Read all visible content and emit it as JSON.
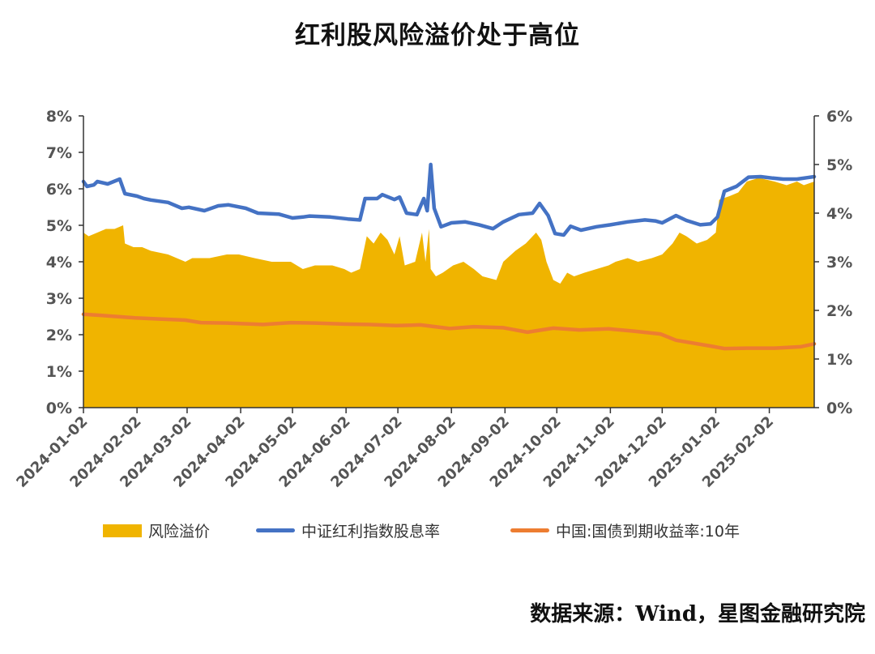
{
  "title": "红利股风险溢价处于高位",
  "source": "数据来源：Wind，星图金融研究院",
  "colors": {
    "premium": "#F0B400",
    "dividend": "#4472C4",
    "bond": "#ED7D31",
    "axis": "#333333"
  },
  "chart_data": {
    "type": "line",
    "title": "红利股风险溢价处于高位",
    "xlabel": "",
    "ylabel_left": "",
    "ylabel_right": "",
    "x_range": [
      "2024-01-02",
      "2025-02-28"
    ],
    "x_ticks": [
      "2024-01-02",
      "2024-02-02",
      "2024-03-02",
      "2024-04-02",
      "2024-05-02",
      "2024-06-02",
      "2024-07-02",
      "2024-08-02",
      "2024-09-02",
      "2024-10-02",
      "2024-11-02",
      "2024-12-02",
      "2025-01-02",
      "2025-02-02"
    ],
    "y_left": {
      "range": [
        0,
        8
      ],
      "ticks": [
        "0%",
        "1%",
        "2%",
        "3%",
        "4%",
        "5%",
        "6%",
        "7%",
        "8%"
      ]
    },
    "y_right": {
      "range": [
        0,
        6
      ],
      "ticks": [
        "0%",
        "1%",
        "2%",
        "3%",
        "4%",
        "5%",
        "6%"
      ]
    },
    "legend_position": "bottom",
    "grid": false,
    "series": [
      {
        "name": "风险溢价",
        "type": "area",
        "axis": "left",
        "color": "#F0B400",
        "points": [
          [
            "2024-01-02",
            4.8
          ],
          [
            "2024-01-05",
            4.7
          ],
          [
            "2024-01-10",
            4.8
          ],
          [
            "2024-01-15",
            4.9
          ],
          [
            "2024-01-20",
            4.9
          ],
          [
            "2024-01-25",
            5.0
          ],
          [
            "2024-01-26",
            4.5
          ],
          [
            "2024-01-31",
            4.4
          ],
          [
            "2024-02-05",
            4.4
          ],
          [
            "2024-02-10",
            4.3
          ],
          [
            "2024-02-20",
            4.2
          ],
          [
            "2024-03-01",
            4.0
          ],
          [
            "2024-03-05",
            4.1
          ],
          [
            "2024-03-15",
            4.1
          ],
          [
            "2024-03-25",
            4.2
          ],
          [
            "2024-04-01",
            4.2
          ],
          [
            "2024-04-10",
            4.1
          ],
          [
            "2024-04-20",
            4.0
          ],
          [
            "2024-05-01",
            4.0
          ],
          [
            "2024-05-08",
            3.8
          ],
          [
            "2024-05-15",
            3.9
          ],
          [
            "2024-05-25",
            3.9
          ],
          [
            "2024-06-01",
            3.8
          ],
          [
            "2024-06-05",
            3.7
          ],
          [
            "2024-06-10",
            3.8
          ],
          [
            "2024-06-14",
            4.7
          ],
          [
            "2024-06-18",
            4.5
          ],
          [
            "2024-06-22",
            4.8
          ],
          [
            "2024-06-26",
            4.6
          ],
          [
            "2024-06-30",
            4.2
          ],
          [
            "2024-07-03",
            4.7
          ],
          [
            "2024-07-06",
            3.9
          ],
          [
            "2024-07-12",
            4.0
          ],
          [
            "2024-07-16",
            4.8
          ],
          [
            "2024-07-18",
            4.0
          ],
          [
            "2024-07-20",
            4.9
          ],
          [
            "2024-07-21",
            3.8
          ],
          [
            "2024-07-24",
            3.6
          ],
          [
            "2024-07-28",
            3.7
          ],
          [
            "2024-08-03",
            3.9
          ],
          [
            "2024-08-09",
            4.0
          ],
          [
            "2024-08-15",
            3.8
          ],
          [
            "2024-08-20",
            3.6
          ],
          [
            "2024-08-28",
            3.5
          ],
          [
            "2024-09-01",
            4.0
          ],
          [
            "2024-09-08",
            4.3
          ],
          [
            "2024-09-14",
            4.5
          ],
          [
            "2024-09-20",
            4.8
          ],
          [
            "2024-09-23",
            4.6
          ],
          [
            "2024-09-26",
            4.0
          ],
          [
            "2024-09-30",
            3.5
          ],
          [
            "2024-10-04",
            3.4
          ],
          [
            "2024-10-08",
            3.7
          ],
          [
            "2024-10-12",
            3.6
          ],
          [
            "2024-10-18",
            3.7
          ],
          [
            "2024-10-25",
            3.8
          ],
          [
            "2024-11-01",
            3.9
          ],
          [
            "2024-11-05",
            4.0
          ],
          [
            "2024-11-12",
            4.1
          ],
          [
            "2024-11-18",
            4.0
          ],
          [
            "2024-11-26",
            4.1
          ],
          [
            "2024-12-02",
            4.2
          ],
          [
            "2024-12-08",
            4.5
          ],
          [
            "2024-12-12",
            4.8
          ],
          [
            "2024-12-16",
            4.7
          ],
          [
            "2024-12-22",
            4.5
          ],
          [
            "2024-12-28",
            4.6
          ],
          [
            "2025-01-02",
            4.8
          ],
          [
            "2025-01-04",
            5.7
          ],
          [
            "2025-01-10",
            5.8
          ],
          [
            "2025-01-15",
            5.9
          ],
          [
            "2025-01-20",
            6.2
          ],
          [
            "2025-01-27",
            6.3
          ],
          [
            "2025-02-05",
            6.2
          ],
          [
            "2025-02-12",
            6.1
          ],
          [
            "2025-02-18",
            6.2
          ],
          [
            "2025-02-22",
            6.1
          ],
          [
            "2025-02-28",
            6.2
          ]
        ]
      },
      {
        "name": "中证红利指数股息率",
        "type": "line",
        "axis": "right",
        "color": "#4472C4",
        "points": [
          [
            "2024-01-02",
            4.65
          ],
          [
            "2024-01-04",
            4.55
          ],
          [
            "2024-01-08",
            4.58
          ],
          [
            "2024-01-10",
            4.65
          ],
          [
            "2024-01-16",
            4.6
          ],
          [
            "2024-01-23",
            4.7
          ],
          [
            "2024-01-26",
            4.4
          ],
          [
            "2024-02-02",
            4.35
          ],
          [
            "2024-02-06",
            4.3
          ],
          [
            "2024-02-10",
            4.27
          ],
          [
            "2024-02-20",
            4.22
          ],
          [
            "2024-02-28",
            4.1
          ],
          [
            "2024-03-03",
            4.12
          ],
          [
            "2024-03-12",
            4.05
          ],
          [
            "2024-03-20",
            4.15
          ],
          [
            "2024-03-26",
            4.17
          ],
          [
            "2024-04-05",
            4.1
          ],
          [
            "2024-04-12",
            4.0
          ],
          [
            "2024-04-24",
            3.98
          ],
          [
            "2024-05-02",
            3.9
          ],
          [
            "2024-05-08",
            3.92
          ],
          [
            "2024-05-12",
            3.94
          ],
          [
            "2024-05-24",
            3.92
          ],
          [
            "2024-06-03",
            3.88
          ],
          [
            "2024-06-10",
            3.86
          ],
          [
            "2024-06-13",
            4.3
          ],
          [
            "2024-06-20",
            4.3
          ],
          [
            "2024-06-23",
            4.38
          ],
          [
            "2024-06-30",
            4.28
          ],
          [
            "2024-07-03",
            4.33
          ],
          [
            "2024-07-07",
            4.0
          ],
          [
            "2024-07-13",
            3.97
          ],
          [
            "2024-07-17",
            4.3
          ],
          [
            "2024-07-19",
            4.05
          ],
          [
            "2024-07-21",
            5.0
          ],
          [
            "2024-07-23",
            4.1
          ],
          [
            "2024-07-27",
            3.72
          ],
          [
            "2024-08-02",
            3.8
          ],
          [
            "2024-08-10",
            3.82
          ],
          [
            "2024-08-18",
            3.76
          ],
          [
            "2024-08-26",
            3.68
          ],
          [
            "2024-09-01",
            3.82
          ],
          [
            "2024-09-10",
            3.97
          ],
          [
            "2024-09-18",
            4.0
          ],
          [
            "2024-09-22",
            4.2
          ],
          [
            "2024-09-27",
            3.95
          ],
          [
            "2024-10-01",
            3.58
          ],
          [
            "2024-10-06",
            3.55
          ],
          [
            "2024-10-10",
            3.73
          ],
          [
            "2024-10-16",
            3.65
          ],
          [
            "2024-10-25",
            3.72
          ],
          [
            "2024-11-02",
            3.76
          ],
          [
            "2024-11-12",
            3.82
          ],
          [
            "2024-11-22",
            3.86
          ],
          [
            "2024-11-28",
            3.84
          ],
          [
            "2024-12-02",
            3.8
          ],
          [
            "2024-12-10",
            3.95
          ],
          [
            "2024-12-16",
            3.85
          ],
          [
            "2024-12-24",
            3.76
          ],
          [
            "2024-12-30",
            3.78
          ],
          [
            "2025-01-03",
            3.92
          ],
          [
            "2025-01-07",
            4.45
          ],
          [
            "2025-01-14",
            4.55
          ],
          [
            "2025-01-21",
            4.74
          ],
          [
            "2025-01-28",
            4.75
          ],
          [
            "2025-02-04",
            4.72
          ],
          [
            "2025-02-10",
            4.7
          ],
          [
            "2025-02-18",
            4.7
          ],
          [
            "2025-02-24",
            4.73
          ],
          [
            "2025-02-28",
            4.75
          ]
        ]
      },
      {
        "name": "中国:国债到期收益率:10年",
        "type": "line",
        "axis": "left",
        "color": "#ED7D31",
        "points": [
          [
            "2024-01-02",
            2.56
          ],
          [
            "2024-01-15",
            2.52
          ],
          [
            "2024-02-01",
            2.46
          ],
          [
            "2024-02-15",
            2.43
          ],
          [
            "2024-03-01",
            2.4
          ],
          [
            "2024-03-10",
            2.33
          ],
          [
            "2024-03-25",
            2.32
          ],
          [
            "2024-04-15",
            2.28
          ],
          [
            "2024-05-01",
            2.33
          ],
          [
            "2024-05-15",
            2.32
          ],
          [
            "2024-06-01",
            2.29
          ],
          [
            "2024-06-15",
            2.28
          ],
          [
            "2024-07-01",
            2.25
          ],
          [
            "2024-07-15",
            2.27
          ],
          [
            "2024-08-01",
            2.17
          ],
          [
            "2024-08-15",
            2.22
          ],
          [
            "2024-09-01",
            2.19
          ],
          [
            "2024-09-15",
            2.07
          ],
          [
            "2024-09-30",
            2.18
          ],
          [
            "2024-10-15",
            2.13
          ],
          [
            "2024-11-01",
            2.16
          ],
          [
            "2024-11-15",
            2.1
          ],
          [
            "2024-12-01",
            2.02
          ],
          [
            "2024-12-10",
            1.85
          ],
          [
            "2024-12-31",
            1.68
          ],
          [
            "2025-01-07",
            1.62
          ],
          [
            "2025-01-20",
            1.63
          ],
          [
            "2025-02-05",
            1.63
          ],
          [
            "2025-02-20",
            1.67
          ],
          [
            "2025-02-28",
            1.75
          ]
        ]
      }
    ]
  }
}
